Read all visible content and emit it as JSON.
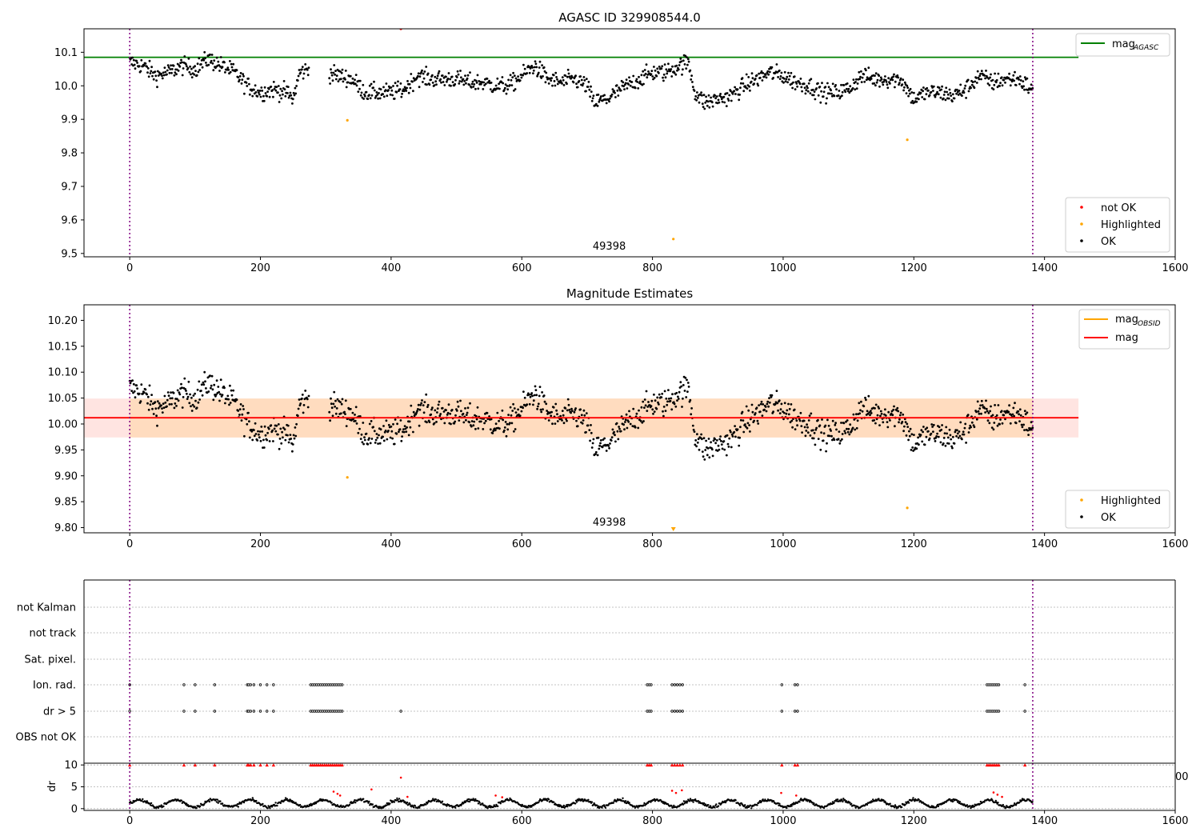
{
  "figure": {
    "colors": {
      "ok": "#000000",
      "highlighted": "#ffa500",
      "not_ok": "#ff0000",
      "mag_agasc_line": "#008000",
      "mag_obsid_line": "#ffa500",
      "mag_line": "#ff0000",
      "obsid_band": "#ffdab9",
      "mag_band": "#ffe4e1",
      "interval_marker": "#800080",
      "grid": "#b0b0b0"
    }
  },
  "chart_data": [
    {
      "id": "agasc",
      "type": "scatter",
      "title": "AGASC ID 329908544.0",
      "xlim": [
        -70,
        1600
      ],
      "ylim": [
        9.49,
        10.17
      ],
      "xticks": [
        0,
        200,
        400,
        600,
        800,
        1000,
        1200,
        1400,
        1600
      ],
      "yticks": [
        9.5,
        9.6,
        9.7,
        9.8,
        9.9,
        10.0,
        10.1
      ],
      "vlines": [
        0,
        1382
      ],
      "obsid_label": {
        "text": "49398",
        "x": 691
      },
      "hlines": [
        {
          "name": "mag_AGASC",
          "y": 10.085,
          "x0": -70,
          "x1": 1452
        }
      ],
      "legend_top": {
        "position": "top-right",
        "entries": [
          {
            "label": "mag",
            "sub": "AGASC",
            "kind": "line",
            "color": "#008000"
          }
        ]
      },
      "legend_bottom": {
        "position": "lower-right",
        "entries": [
          {
            "label": "not OK",
            "kind": "dot",
            "color": "#ff0000"
          },
          {
            "label": "Highlighted",
            "kind": "dot",
            "color": "#ffa500"
          },
          {
            "label": "OK",
            "kind": "dot",
            "color": "#000000"
          }
        ]
      },
      "ok_trend": [
        [
          0,
          10.07
        ],
        [
          20,
          10.06
        ],
        [
          40,
          10.03
        ],
        [
          60,
          10.04
        ],
        [
          80,
          10.06
        ],
        [
          100,
          10.05
        ],
        [
          120,
          10.08
        ],
        [
          140,
          10.06
        ],
        [
          160,
          10.04
        ],
        [
          180,
          10.0
        ],
        [
          200,
          9.98
        ],
        [
          220,
          9.99
        ],
        [
          240,
          9.98
        ],
        [
          250,
          9.96
        ],
        [
          260,
          10.04
        ],
        [
          275,
          10.05
        ],
        [
          300,
          10.04
        ],
        [
          320,
          10.03
        ],
        [
          340,
          10.02
        ],
        [
          360,
          9.98
        ],
        [
          380,
          9.98
        ],
        [
          400,
          9.98
        ],
        [
          420,
          9.99
        ],
        [
          440,
          10.03
        ],
        [
          460,
          10.02
        ],
        [
          480,
          10.02
        ],
        [
          500,
          10.02
        ],
        [
          520,
          10.01
        ],
        [
          540,
          10.01
        ],
        [
          560,
          10.0
        ],
        [
          580,
          10.0
        ],
        [
          600,
          10.03
        ],
        [
          620,
          10.06
        ],
        [
          640,
          10.02
        ],
        [
          660,
          10.01
        ],
        [
          680,
          10.02
        ],
        [
          700,
          10.0
        ],
        [
          710,
          9.95
        ],
        [
          730,
          9.96
        ],
        [
          760,
          10.0
        ],
        [
          780,
          10.02
        ],
        [
          800,
          10.04
        ],
        [
          820,
          10.04
        ],
        [
          840,
          10.06
        ],
        [
          855,
          10.07
        ],
        [
          865,
          9.98
        ],
        [
          880,
          9.95
        ],
        [
          900,
          9.96
        ],
        [
          920,
          9.97
        ],
        [
          940,
          10.0
        ],
        [
          960,
          10.02
        ],
        [
          980,
          10.04
        ],
        [
          1000,
          10.03
        ],
        [
          1020,
          10.01
        ],
        [
          1040,
          10.0
        ],
        [
          1060,
          9.98
        ],
        [
          1080,
          9.98
        ],
        [
          1100,
          9.99
        ],
        [
          1120,
          10.03
        ],
        [
          1140,
          10.02
        ],
        [
          1160,
          10.02
        ],
        [
          1180,
          10.02
        ],
        [
          1200,
          9.96
        ],
        [
          1220,
          9.98
        ],
        [
          1240,
          9.98
        ],
        [
          1260,
          9.97
        ],
        [
          1280,
          9.99
        ],
        [
          1300,
          10.03
        ],
        [
          1320,
          10.01
        ],
        [
          1340,
          10.02
        ],
        [
          1360,
          10.02
        ],
        [
          1380,
          9.99
        ]
      ],
      "highlighted": [
        [
          333,
          9.897
        ],
        [
          1190,
          9.839
        ],
        [
          832,
          9.543
        ]
      ],
      "not_ok": [
        [
          415,
          10.17
        ]
      ]
    },
    {
      "id": "estimates",
      "type": "scatter",
      "title": "Magnitude Estimates",
      "xlim": [
        -70,
        1600
      ],
      "ylim": [
        9.79,
        10.23
      ],
      "xticks": [
        0,
        200,
        400,
        600,
        800,
        1000,
        1200,
        1400,
        1600
      ],
      "yticks": [
        9.8,
        9.85,
        9.9,
        9.95,
        10.0,
        10.05,
        10.1,
        10.15,
        10.2
      ],
      "vlines": [
        0,
        1382
      ],
      "obsid_label": {
        "text": "49398",
        "x": 691
      },
      "bands": [
        {
          "name": "mag band",
          "x0": -70,
          "x1": 1452,
          "y0": 9.974,
          "y1": 10.049
        },
        {
          "name": "mag_OBSID band",
          "x0": 0,
          "x1": 1382,
          "y0": 9.974,
          "y1": 10.049
        }
      ],
      "hlines": [
        {
          "name": "mag",
          "y": 10.012,
          "x0": -70,
          "x1": 1452
        }
      ],
      "legend_top": {
        "position": "top-right",
        "entries": [
          {
            "label": "mag",
            "sub": "OBSID",
            "kind": "line",
            "color": "#ffa500"
          },
          {
            "label": "mag",
            "kind": "line",
            "color": "#ff0000"
          }
        ]
      },
      "legend_bottom": {
        "position": "lower-right",
        "entries": [
          {
            "label": "Highlighted",
            "kind": "dot",
            "color": "#ffa500"
          },
          {
            "label": "OK",
            "kind": "dot",
            "color": "#000000"
          }
        ]
      },
      "highlighted": [
        [
          333,
          9.897
        ],
        [
          1190,
          9.838
        ]
      ],
      "highlighted_clipped": [
        832
      ]
    },
    {
      "id": "flags",
      "type": "scatter",
      "xlim": [
        -70,
        1600
      ],
      "categories": [
        "OBS not OK",
        "dr > 5",
        "Ion. rad.",
        "Sat. pixel.",
        "not track",
        "not Kalman"
      ],
      "vlines": [
        0,
        1382
      ],
      "flag_x": [
        0,
        83,
        100,
        130,
        180,
        182,
        185,
        190,
        200,
        210,
        220,
        277,
        280,
        283,
        286,
        289,
        292,
        295,
        298,
        301,
        304,
        307,
        310,
        313,
        316,
        319,
        322,
        325,
        792,
        795,
        798,
        830,
        834,
        838,
        842,
        846,
        998,
        1018,
        1022,
        1312,
        1315,
        1318,
        1321,
        1324,
        1327,
        1330,
        1370
      ],
      "dr_extra_x": [
        415
      ]
    },
    {
      "id": "dr",
      "type": "scatter",
      "xlim": [
        -70,
        1600
      ],
      "ylim": [
        -0.4,
        10.4
      ],
      "xticks": [
        0,
        200,
        400,
        600,
        800,
        1000,
        1200,
        1400,
        1600
      ],
      "yticks": [
        0,
        5,
        10
      ],
      "ylabel": "dr",
      "vlines": [
        0,
        1382
      ],
      "clipped_tick": "00",
      "not_ok_top_x": [
        0,
        83,
        100,
        130,
        180,
        182,
        185,
        190,
        200,
        210,
        220,
        277,
        280,
        283,
        286,
        289,
        292,
        295,
        298,
        301,
        304,
        307,
        310,
        313,
        316,
        319,
        322,
        325,
        792,
        795,
        798,
        830,
        834,
        838,
        842,
        846,
        998,
        1018,
        1022,
        1312,
        1315,
        1318,
        1321,
        1324,
        1327,
        1330,
        1370
      ],
      "not_ok_points": [
        [
          415,
          7.1
        ],
        [
          370,
          4.4
        ],
        [
          312,
          3.9
        ],
        [
          318,
          3.4
        ],
        [
          322,
          3.0
        ],
        [
          425,
          2.7
        ],
        [
          560,
          3.0
        ],
        [
          570,
          2.6
        ],
        [
          830,
          4.1
        ],
        [
          836,
          3.6
        ],
        [
          845,
          4.2
        ],
        [
          997,
          3.6
        ],
        [
          1020,
          3.0
        ],
        [
          1322,
          3.7
        ],
        [
          1328,
          3.2
        ],
        [
          1335,
          2.7
        ]
      ]
    }
  ]
}
